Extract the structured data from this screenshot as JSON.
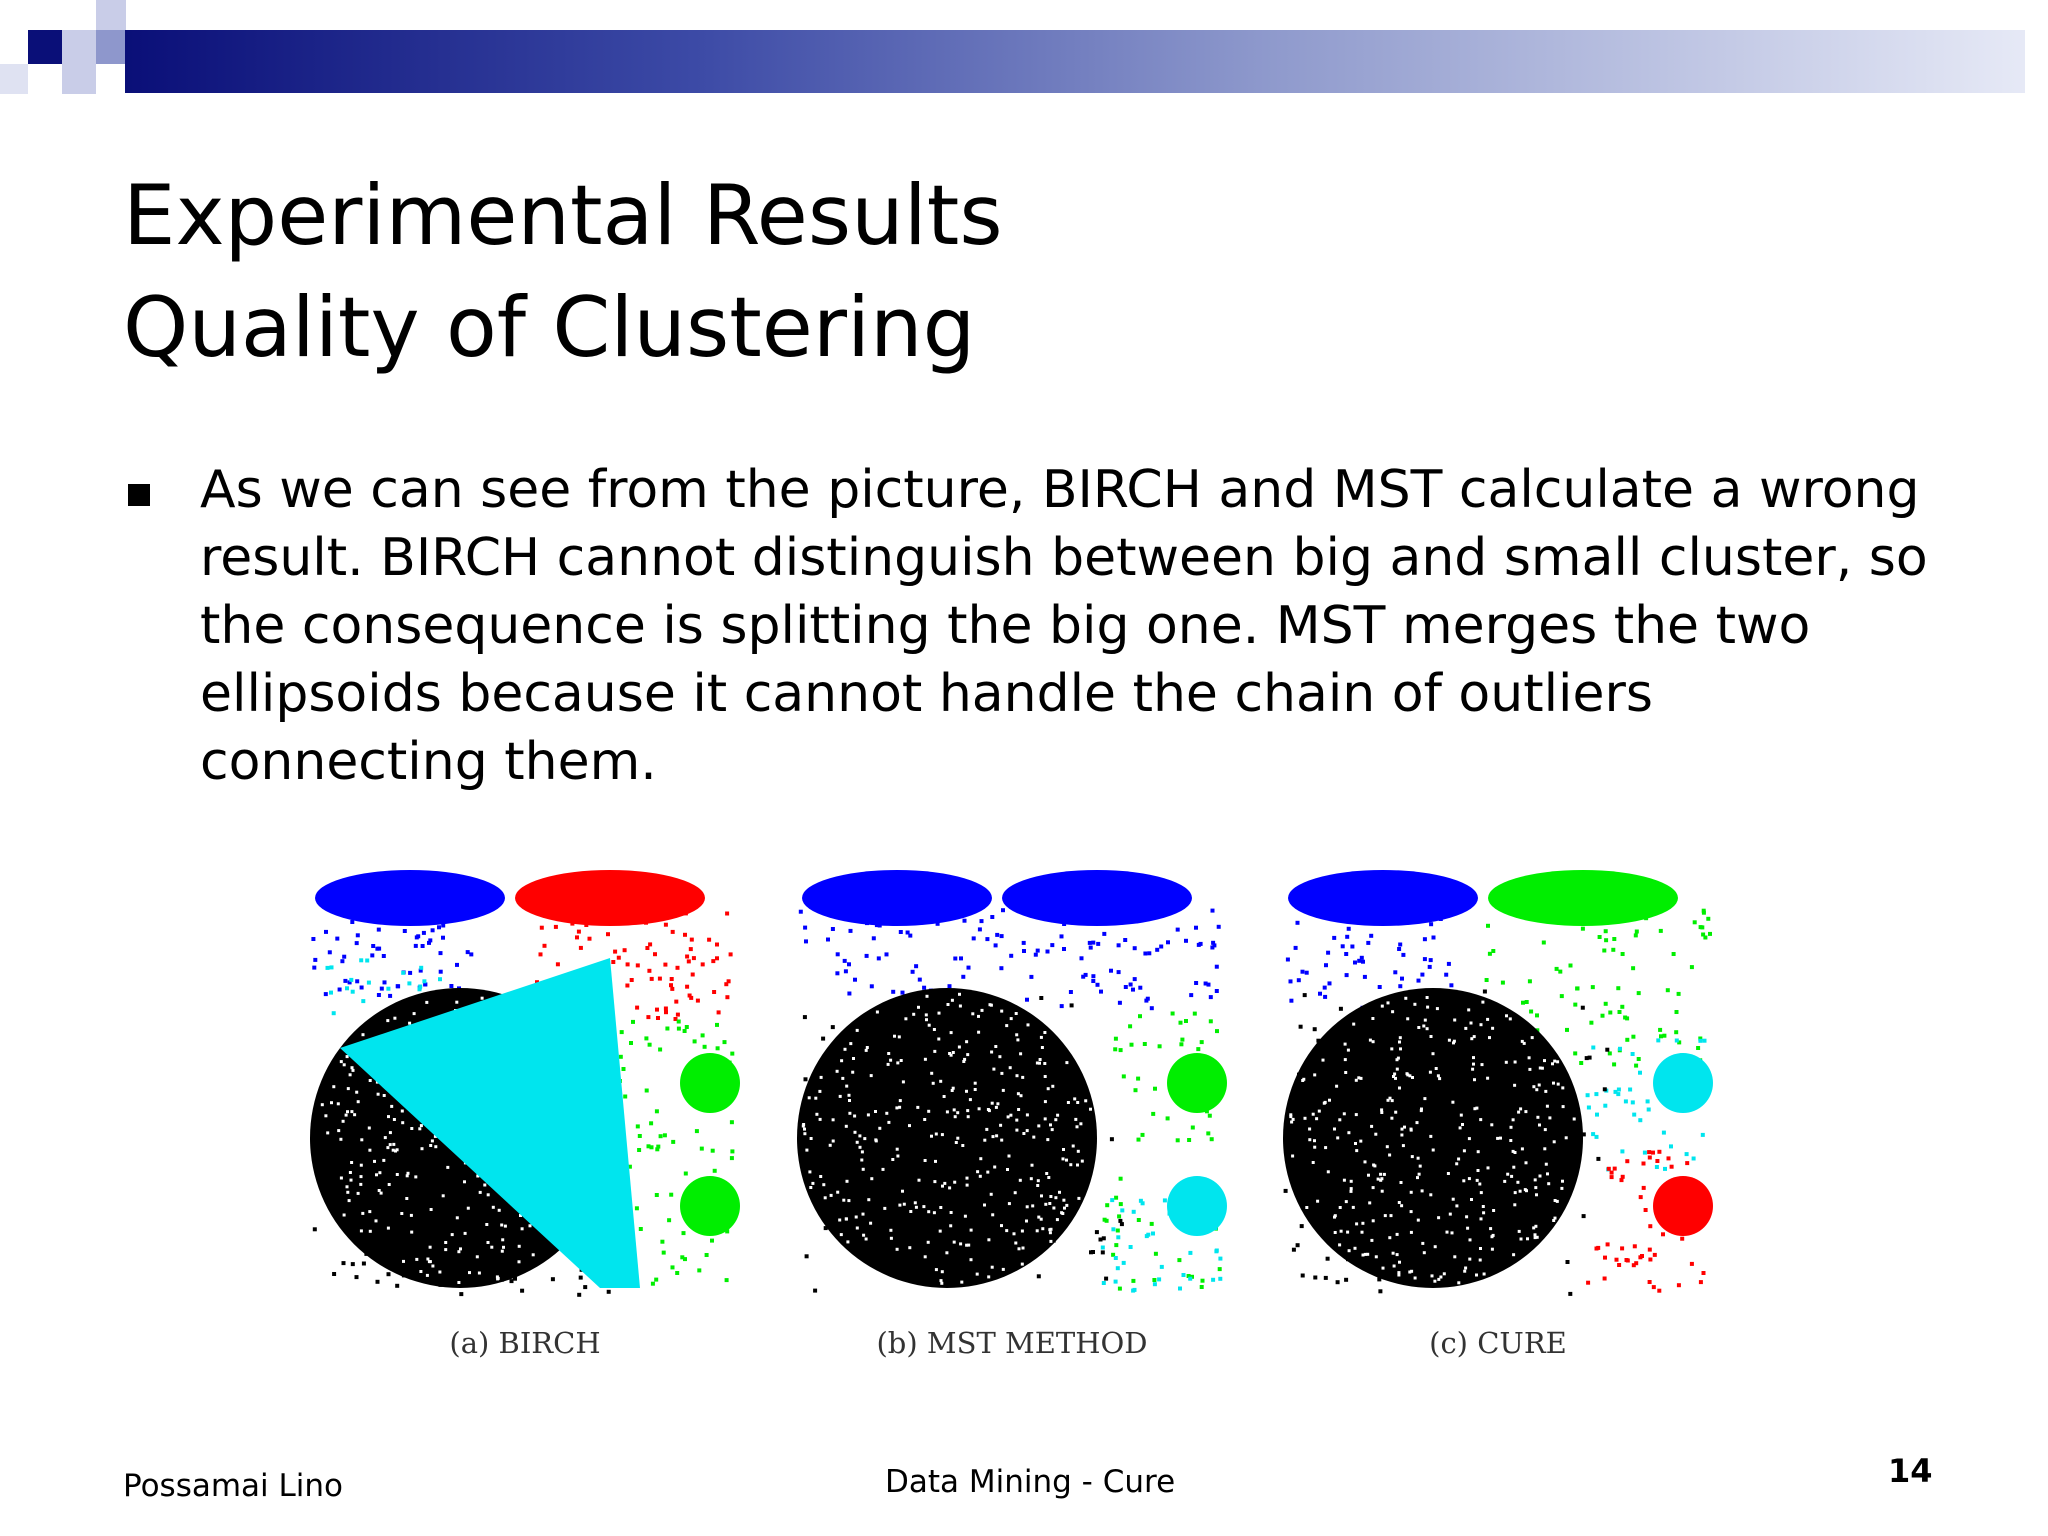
{
  "slide": {
    "title_line1": "Experimental Results",
    "title_line2": "Quality of Clustering",
    "bullet_text": "As we can see from the picture, BIRCH and MST calculate a wrong\nresult. BIRCH cannot distinguish between big and small cluster, so\nthe consequence is splitting the big one. MST merges the two\nellipsoids because it cannot handle the chain of outliers\nconnecting them."
  },
  "figure": {
    "panels": [
      {
        "caption": "(a) BIRCH"
      },
      {
        "caption": "(b) MST METHOD"
      },
      {
        "caption": "(c) CURE"
      }
    ]
  },
  "footer": {
    "author": "Possamai Lino",
    "course": "Data Mining - Cure",
    "page": "14"
  },
  "colors": {
    "band_start": "#0a0f78",
    "band_end": "#e6e9f6",
    "cluster_blue": "#0000ff",
    "cluster_red": "#ff0000",
    "cluster_cyan": "#00e5ee",
    "cluster_green": "#00ee00",
    "cluster_black": "#000000"
  }
}
